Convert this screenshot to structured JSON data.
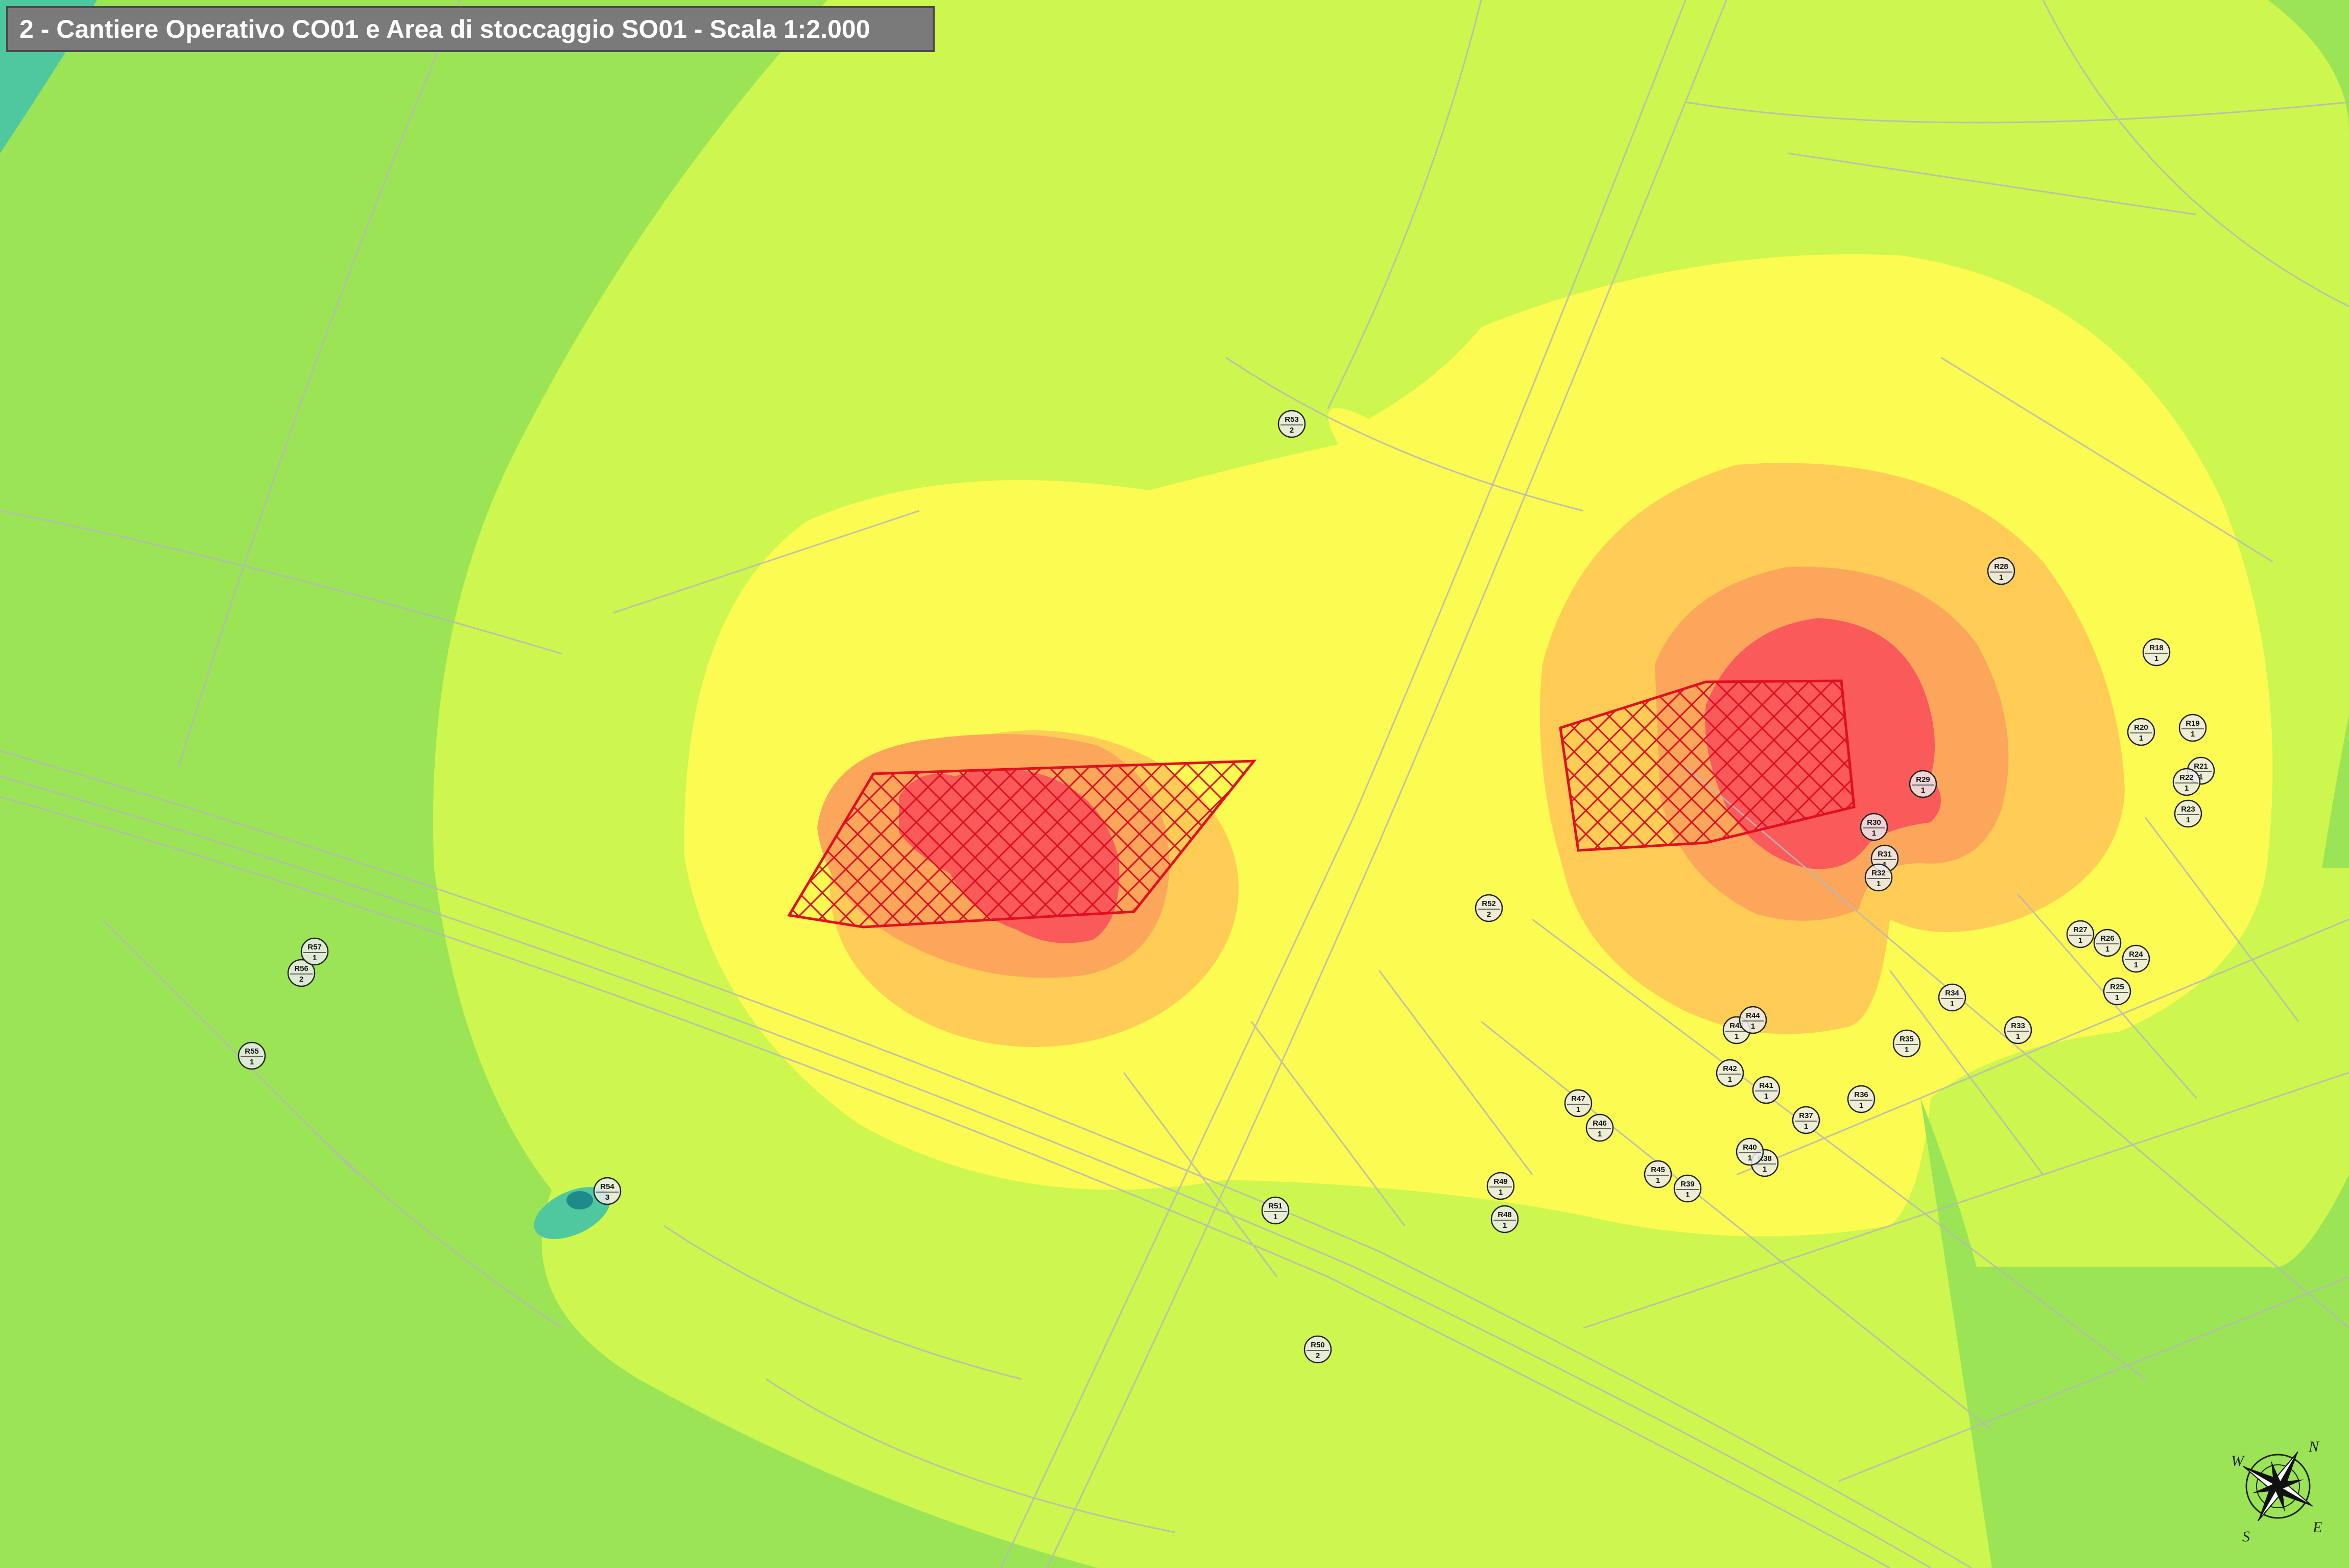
{
  "map": {
    "title": "2 - Cantiere Operativo CO01 e Area di stoccaggio SO01  - Scala 1:2.000",
    "colors": {
      "background": "#9be455",
      "zone_outer": "#cdf64f",
      "zone_mid": "#fbfb52",
      "zone_light_orange": "#ffcc55",
      "zone_orange": "#fca65c",
      "zone_red": "#fa5a5a",
      "site_hatch": "#e01020",
      "lines": "#b8b8b8"
    },
    "sites": [
      {
        "name": "Cantiere Operativo CO01"
      },
      {
        "name": "Area di stoccaggio SO01"
      }
    ],
    "receptors": [
      {
        "id": "R18",
        "n": "1"
      },
      {
        "id": "R19",
        "n": "1"
      },
      {
        "id": "R20",
        "n": "1"
      },
      {
        "id": "R21",
        "n": "1"
      },
      {
        "id": "R22",
        "n": "1"
      },
      {
        "id": "R23",
        "n": "1"
      },
      {
        "id": "R24",
        "n": "1"
      },
      {
        "id": "R25",
        "n": "1"
      },
      {
        "id": "R26",
        "n": "1"
      },
      {
        "id": "R27",
        "n": "1"
      },
      {
        "id": "R28",
        "n": "1"
      },
      {
        "id": "R29",
        "n": "1"
      },
      {
        "id": "R30",
        "n": "1"
      },
      {
        "id": "R31",
        "n": "1"
      },
      {
        "id": "R32",
        "n": "1"
      },
      {
        "id": "R33",
        "n": "1"
      },
      {
        "id": "R34",
        "n": "1"
      },
      {
        "id": "R35",
        "n": "1"
      },
      {
        "id": "R36",
        "n": "1"
      },
      {
        "id": "R37",
        "n": "1"
      },
      {
        "id": "R38",
        "n": "1"
      },
      {
        "id": "R39",
        "n": "1"
      },
      {
        "id": "R40",
        "n": "1"
      },
      {
        "id": "R41",
        "n": "1"
      },
      {
        "id": "R42",
        "n": "1"
      },
      {
        "id": "R43",
        "n": "1"
      },
      {
        "id": "R44",
        "n": "1"
      },
      {
        "id": "R45",
        "n": "1"
      },
      {
        "id": "R46",
        "n": "1"
      },
      {
        "id": "R47",
        "n": "1"
      },
      {
        "id": "R48",
        "n": "1"
      },
      {
        "id": "R49",
        "n": "1"
      },
      {
        "id": "R50",
        "n": "2"
      },
      {
        "id": "R51",
        "n": "1"
      },
      {
        "id": "R52",
        "n": "2"
      },
      {
        "id": "R53",
        "n": "2"
      },
      {
        "id": "R54",
        "n": "3"
      },
      {
        "id": "R55",
        "n": "1"
      },
      {
        "id": "R56",
        "n": "2"
      },
      {
        "id": "R57",
        "n": "1"
      }
    ],
    "compass": {
      "n": "N",
      "s": "S",
      "e": "E",
      "w": "W"
    }
  }
}
